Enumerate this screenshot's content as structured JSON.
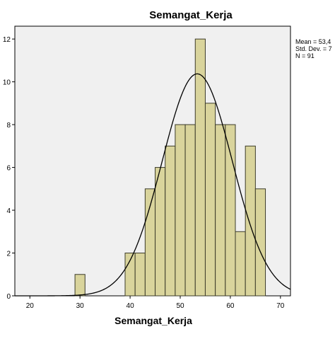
{
  "colors": {
    "plot_background": "#f0f0f0",
    "bar_fill": "#d9d49c",
    "bar_stroke": "#3c3c2a",
    "curve": "#000000",
    "axis": "#000000"
  },
  "chart_data": {
    "type": "bar",
    "title": "Semangat_Kerja",
    "xlabel": "Semangat_Kerja",
    "ylabel": "",
    "xlim": [
      17,
      72
    ],
    "ylim": [
      0,
      12.6
    ],
    "x_ticks": [
      20,
      30,
      40,
      50,
      60,
      70
    ],
    "y_ticks": [
      0,
      2,
      4,
      6,
      8,
      10,
      12
    ],
    "bin_width": 2,
    "bins": [
      {
        "start": 29,
        "end": 31,
        "count": 1
      },
      {
        "start": 39,
        "end": 41,
        "count": 2
      },
      {
        "start": 41,
        "end": 43,
        "count": 2
      },
      {
        "start": 43,
        "end": 45,
        "count": 5
      },
      {
        "start": 45,
        "end": 47,
        "count": 6
      },
      {
        "start": 47,
        "end": 49,
        "count": 7
      },
      {
        "start": 49,
        "end": 51,
        "count": 8
      },
      {
        "start": 51,
        "end": 53,
        "count": 8
      },
      {
        "start": 53,
        "end": 55,
        "count": 12
      },
      {
        "start": 55,
        "end": 57,
        "count": 9
      },
      {
        "start": 57,
        "end": 59,
        "count": 8
      },
      {
        "start": 59,
        "end": 61,
        "count": 8
      },
      {
        "start": 61,
        "end": 63,
        "count": 3
      },
      {
        "start": 63,
        "end": 65,
        "count": 7
      },
      {
        "start": 65,
        "end": 67,
        "count": 5
      }
    ],
    "normal_curve": {
      "mean": 53.4,
      "sd": 7.0,
      "n": 91
    },
    "legend_lines": [
      "Mean = 53,4",
      "Std. Dev. = 7",
      "N = 91"
    ],
    "grid": false,
    "legend_position": "top-right"
  }
}
